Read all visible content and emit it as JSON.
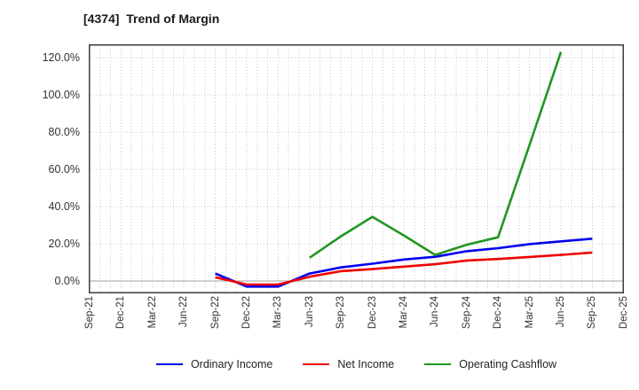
{
  "header": {
    "title": "[4374]  Trend of Margin"
  },
  "colors": {
    "ordinary_income": "#0000EE",
    "net_income": "#EE0000",
    "operating_cashflow": "#229622",
    "grid": "#C2C2C2",
    "zero_line": "#A0A0A0",
    "border": "#3C3C3C",
    "title_text": "#1A1A1A",
    "tick_text": "#333333"
  },
  "chart_data": {
    "type": "line",
    "title": "[4374]  Trend of Margin",
    "xlabel": "",
    "ylabel": "",
    "categories": [
      "Sep-21",
      "Dec-21",
      "Mar-22",
      "Jun-22",
      "Sep-22",
      "Dec-22",
      "Mar-23",
      "Jun-23",
      "Sep-23",
      "Dec-23",
      "Mar-24",
      "Jun-24",
      "Sep-24",
      "Dec-24",
      "Mar-25",
      "Jun-25",
      "Sep-25",
      "Dec-25"
    ],
    "series": [
      {
        "name": "Ordinary Income",
        "color_key": "ordinary_income",
        "values": [
          null,
          null,
          null,
          null,
          4.0,
          -3.0,
          -3.0,
          4.0,
          7.3,
          9.3,
          11.5,
          13.0,
          16.0,
          17.6,
          19.8,
          21.3,
          22.7,
          null
        ]
      },
      {
        "name": "Net Income",
        "color_key": "net_income",
        "values": [
          null,
          null,
          null,
          null,
          2.0,
          -1.9,
          -1.9,
          2.3,
          5.3,
          6.4,
          7.7,
          9.0,
          11.0,
          11.8,
          12.9,
          14.0,
          15.3,
          null
        ]
      },
      {
        "name": "Operating Cashflow",
        "color_key": "operating_cashflow",
        "values": [
          null,
          null,
          null,
          null,
          null,
          null,
          null,
          12.5,
          24.0,
          34.5,
          24.5,
          14.0,
          19.5,
          23.5,
          73.0,
          123.0,
          null,
          null
        ]
      }
    ],
    "y_ticks": [
      "120.0%",
      "100.0%",
      "80.0%",
      "60.0%",
      "40.0%",
      "20.0%",
      "0.0%"
    ],
    "y_tick_values": [
      120,
      100,
      80,
      60,
      40,
      20,
      0
    ],
    "ylim": [
      -6,
      127
    ],
    "grid": "dotted; vertical minor gridlines monthly, horizontal every 20%",
    "legend_position": "bottom-center"
  }
}
